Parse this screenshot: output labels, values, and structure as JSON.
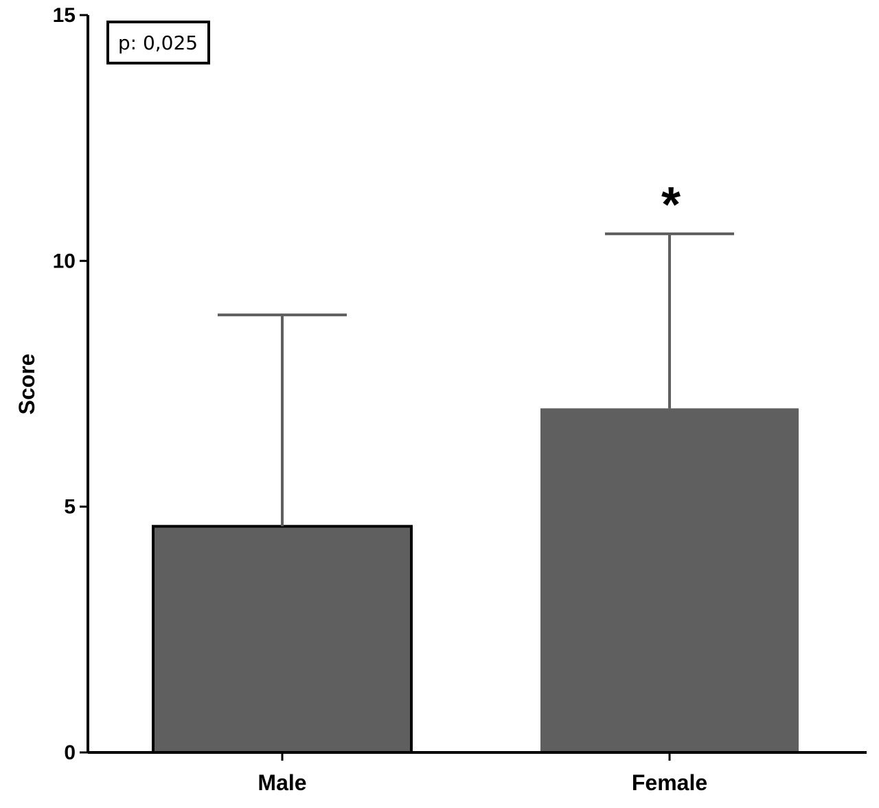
{
  "chart_data": {
    "type": "bar",
    "categories": [
      "Male",
      "Female"
    ],
    "values": [
      4.6,
      7.0
    ],
    "error_upper": [
      8.9,
      10.55
    ],
    "ylabel": "Score",
    "xlabel": "",
    "ylim": [
      0,
      15
    ],
    "yticks": [
      "0",
      "5",
      "10",
      "15"
    ],
    "ytick_values": [
      0,
      5,
      10,
      15
    ],
    "annotation": "p: 0,025",
    "significance_marker": "*",
    "significance_category": "Female",
    "bar_color": "#5f5f5f",
    "error_color": "#5f5f5f",
    "grid": false
  }
}
